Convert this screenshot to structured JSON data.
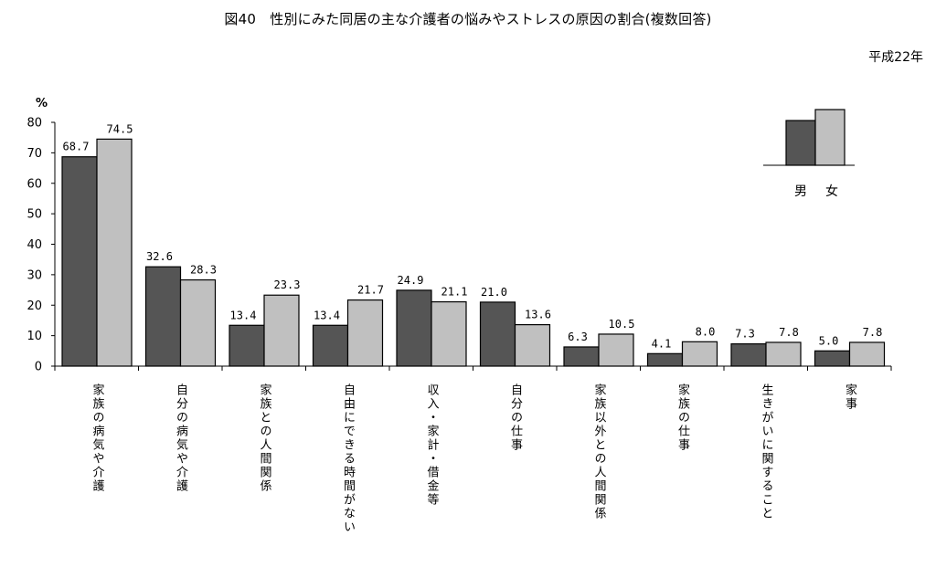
{
  "title": "図40　性別にみた同居の主な介護者の悩みやストレスの原因の割合(複数回答)",
  "era": "平成22年",
  "chart_data": {
    "type": "bar",
    "ylabel": "%",
    "ylim": [
      0,
      80
    ],
    "yticks": [
      0,
      10,
      20,
      30,
      40,
      50,
      60,
      70,
      80
    ],
    "grid": false,
    "legend_position": "top-right",
    "categories": [
      "家族の病気や介護",
      "自分の病気や介護",
      "家族との人間関係",
      "自由にできる時間がない",
      "収入・家計・借金等",
      "自分の仕事",
      "家族以外との人間関係",
      "家族の仕事",
      "生きがいに関すること",
      "家事"
    ],
    "series": [
      {
        "name": "男",
        "color": "#555555",
        "values": [
          68.7,
          32.6,
          13.4,
          13.4,
          24.9,
          21.0,
          6.3,
          4.1,
          7.3,
          5.0
        ],
        "labels": [
          "68.7",
          "32.6",
          "13.4",
          "13.4",
          "24.9",
          "21.0",
          "6.3",
          "4.1",
          "7.3",
          "5.0"
        ]
      },
      {
        "name": "女",
        "color": "#c0c0c0",
        "values": [
          74.5,
          28.3,
          23.3,
          21.7,
          21.1,
          13.6,
          10.5,
          8.0,
          7.8,
          7.8
        ],
        "labels": [
          "74.5",
          "28.3",
          "23.3",
          "21.7",
          "21.1",
          "13.6",
          "10.5",
          "8.0",
          "7.8",
          "7.8"
        ]
      }
    ]
  }
}
